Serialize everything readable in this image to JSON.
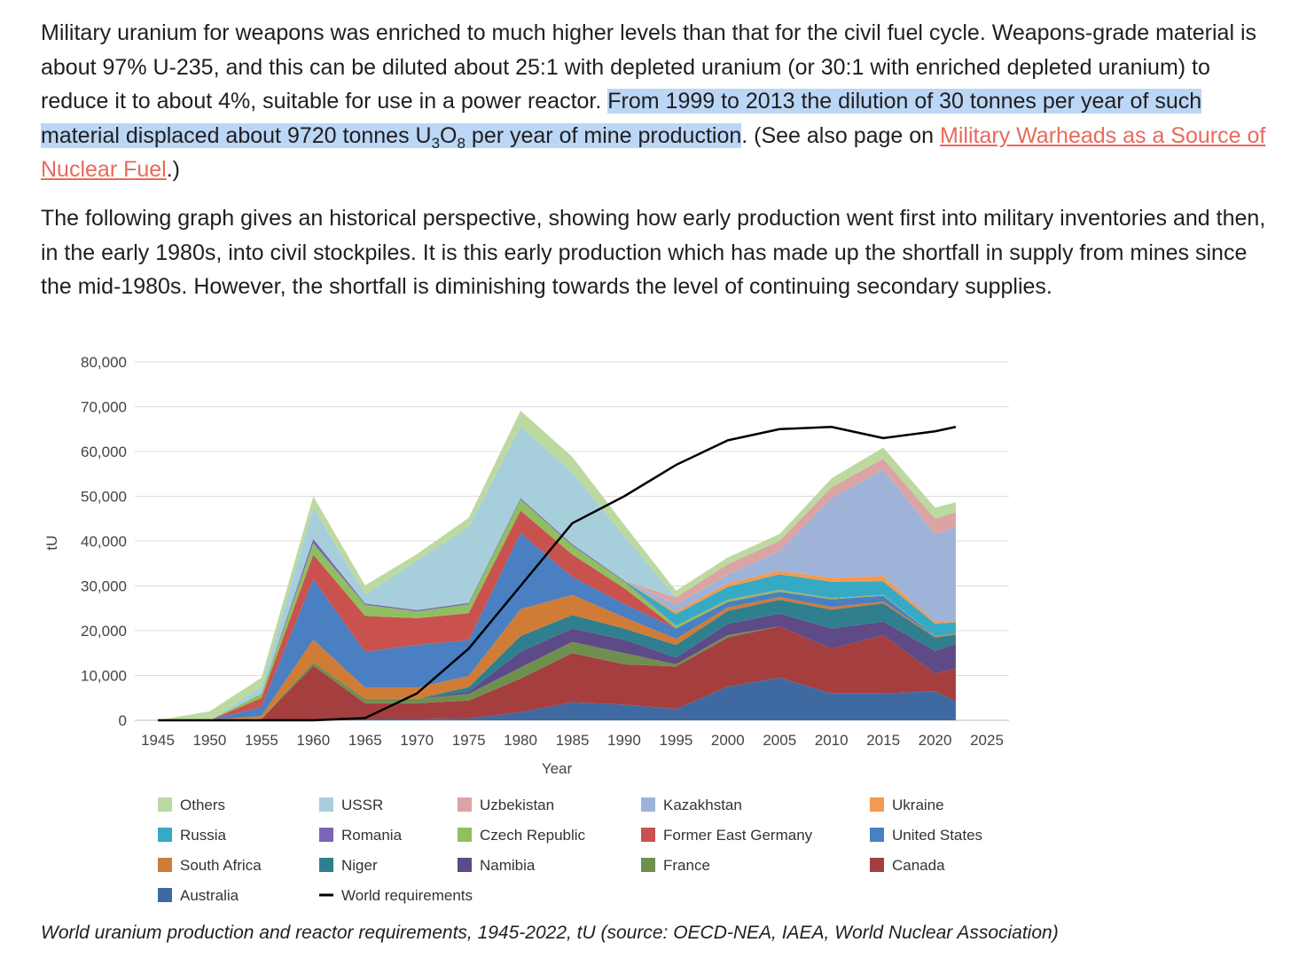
{
  "article": {
    "p1_a": "Military uranium for weapons was enriched to much higher levels than that for the civil fuel cycle. Weapons-grade material is about 97% U-235, and this can be diluted about 25:1 with depleted uranium (or 30:1 with enriched depleted uranium) to reduce it to about 4%, suitable for use in a power reactor. ",
    "p1_hl_a": "From 1999 to 2013 the dilution of 30 tonnes per year of such material displaced about 9720 tonnes U",
    "p1_sub1": "3",
    "p1_hl_b": "O",
    "p1_sub2": "8",
    "p1_hl_c": " per year of mine production",
    "p1_b": ". (See also page on ",
    "p1_link": "Military Warheads as a Source of Nuclear Fuel",
    "p1_c": ".)",
    "p2": "The following graph gives an historical perspective, showing how early production went first into military inventories and then, in the early 1980s, into civil stockpiles. It is this early production which has made up the shortfall in supply from mines since the mid-1980s. However, the shortfall is diminishing towards the level of continuing secondary supplies."
  },
  "caption": "World uranium production and reactor requirements, 1945-2022, tU (source: OECD-NEA, IAEA, World Nuclear Association)",
  "chart_data": {
    "type": "area",
    "title": "",
    "xlabel": "Year",
    "ylabel": "tU",
    "xlim": [
      1945,
      2025
    ],
    "ylim": [
      0,
      80000
    ],
    "x_ticks": [
      "1945",
      "1950",
      "1955",
      "1960",
      "1965",
      "1970",
      "1975",
      "1980",
      "1985",
      "1990",
      "1995",
      "2000",
      "2005",
      "2010",
      "2015",
      "2020",
      "2025"
    ],
    "y_ticks": [
      "0",
      "10,000",
      "20,000",
      "30,000",
      "40,000",
      "50,000",
      "60,000",
      "70,000",
      "80,000"
    ],
    "grid": true,
    "legend_position": "bottom",
    "x": [
      1945,
      1950,
      1955,
      1960,
      1965,
      1970,
      1975,
      1980,
      1985,
      1990,
      1995,
      2000,
      2005,
      2010,
      2015,
      2020,
      2022
    ],
    "series": [
      {
        "name": "Australia",
        "color": "#3e6aa1",
        "values": [
          0,
          0,
          0,
          200,
          300,
          300,
          400,
          1800,
          4000,
          3500,
          2500,
          7500,
          9500,
          6000,
          6000,
          6500,
          4200
        ]
      },
      {
        "name": "Canada",
        "color": "#a53f3f",
        "values": [
          0,
          0,
          300,
          12000,
          3500,
          3500,
          4000,
          7500,
          11000,
          9000,
          9500,
          11000,
          11500,
          10000,
          13000,
          4000,
          7300
        ]
      },
      {
        "name": "France",
        "color": "#6f8f4f",
        "values": [
          0,
          0,
          100,
          800,
          1000,
          1000,
          1500,
          2500,
          2500,
          2500,
          500,
          500,
          0,
          0,
          0,
          0,
          0
        ]
      },
      {
        "name": "Namibia",
        "color": "#5e4a86",
        "values": [
          0,
          0,
          0,
          0,
          0,
          0,
          500,
          3500,
          3000,
          3000,
          1500,
          2500,
          2800,
          4500,
          3000,
          5000,
          5600
        ]
      },
      {
        "name": "Niger",
        "color": "#2f7f8f",
        "values": [
          0,
          0,
          0,
          0,
          0,
          0,
          1000,
          3500,
          3000,
          2500,
          2800,
          2900,
          3100,
          4200,
          4100,
          3000,
          2000
        ]
      },
      {
        "name": "South Africa",
        "color": "#d07c36",
        "values": [
          0,
          0,
          600,
          5000,
          2500,
          2500,
          2500,
          6000,
          4500,
          2500,
          1400,
          800,
          600,
          600,
          400,
          250,
          200
        ]
      },
      {
        "name": "United States",
        "color": "#4a7fc1",
        "values": [
          0,
          0,
          2000,
          13500,
          8000,
          9500,
          8000,
          17000,
          4000,
          3000,
          2300,
          1200,
          1200,
          1700,
          1300,
          5,
          75
        ]
      },
      {
        "name": "Former East Germany",
        "color": "#c9524e",
        "values": [
          0,
          0,
          2000,
          5500,
          8000,
          6000,
          6000,
          5000,
          5000,
          3500,
          0,
          0,
          0,
          0,
          0,
          0,
          0
        ]
      },
      {
        "name": "Czech Republic",
        "color": "#8fbf5f",
        "values": [
          0,
          0,
          1000,
          2500,
          2500,
          1500,
          2000,
          2500,
          2000,
          1500,
          600,
          500,
          400,
          250,
          150,
          30,
          0
        ]
      },
      {
        "name": "Romania",
        "color": "#7b65b5",
        "values": [
          0,
          0,
          0,
          1000,
          300,
          300,
          300,
          300,
          300,
          200,
          100,
          100,
          80,
          80,
          50,
          0,
          0
        ]
      },
      {
        "name": "Russia",
        "color": "#36aac4",
        "values": [
          0,
          0,
          0,
          0,
          0,
          0,
          0,
          0,
          0,
          0,
          2500,
          2800,
          3400,
          3600,
          3000,
          2800,
          2500
        ]
      },
      {
        "name": "Ukraine",
        "color": "#f29a4f",
        "values": [
          0,
          0,
          0,
          0,
          0,
          0,
          0,
          0,
          0,
          0,
          500,
          800,
          800,
          850,
          1200,
          400,
          100
        ]
      },
      {
        "name": "Kazakhstan",
        "color": "#9fb3d9",
        "values": [
          0,
          0,
          0,
          0,
          0,
          0,
          0,
          0,
          0,
          0,
          1600,
          1900,
          4400,
          17800,
          23800,
          19500,
          21200
        ]
      },
      {
        "name": "Uzbekistan",
        "color": "#dba4a4",
        "values": [
          0,
          0,
          0,
          0,
          0,
          0,
          0,
          0,
          0,
          0,
          1600,
          2350,
          2300,
          2400,
          2400,
          3500,
          3300
        ]
      },
      {
        "name": "USSR",
        "color": "#a7cfdb",
        "values": [
          0,
          0,
          1500,
          7000,
          2000,
          11000,
          17000,
          16000,
          16000,
          10000,
          0,
          0,
          0,
          0,
          0,
          0,
          0
        ]
      },
      {
        "name": "Others",
        "color": "#bcd9a0",
        "values": [
          0,
          2000,
          2000,
          2500,
          2000,
          1500,
          2000,
          3500,
          3500,
          2500,
          1500,
          1500,
          1500,
          2000,
          2500,
          2500,
          2200
        ]
      },
      {
        "name": "World requirements",
        "color": "#000000",
        "type": "line",
        "values": [
          0,
          0,
          0,
          0,
          500,
          6000,
          16000,
          30000,
          44000,
          50000,
          57000,
          62500,
          65000,
          65500,
          63000,
          64500,
          65500
        ]
      }
    ]
  },
  "legend": [
    [
      "Others",
      "USSR",
      "Uzbekistan",
      "Kazakhstan",
      "Ukraine"
    ],
    [
      "Russia",
      "Romania",
      "Czech Republic",
      "Former East Germany",
      "United States"
    ],
    [
      "South Africa",
      "Niger",
      "Namibia",
      "France",
      "Canada"
    ],
    [
      "Australia",
      "World requirements"
    ]
  ]
}
